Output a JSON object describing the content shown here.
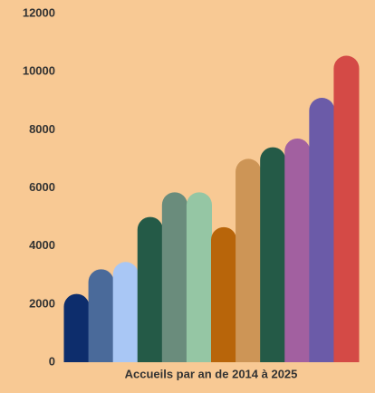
{
  "chart_data": {
    "type": "bar",
    "x_label": "Accueils par an de 2014 à 2025",
    "categories": [
      null,
      null,
      null,
      null,
      null,
      null,
      null,
      null,
      null,
      null,
      null,
      null
    ],
    "values": [
      2350,
      3200,
      3450,
      5000,
      5850,
      5850,
      4650,
      7000,
      7400,
      7700,
      9100,
      10550
    ],
    "colors": [
      "#0d2d6c",
      "#4a6a9a",
      "#a9c7f5",
      "#245a47",
      "#6a8c7c",
      "#95c6a4",
      "#b8650a",
      "#cd9556",
      "#245a47",
      "#a260a0",
      "#6b5ba8",
      "#d44a46"
    ],
    "ylim": [
      0,
      12000
    ],
    "yticks": [
      0,
      2000,
      4000,
      6000,
      8000,
      10000,
      12000
    ],
    "grid": false
  }
}
